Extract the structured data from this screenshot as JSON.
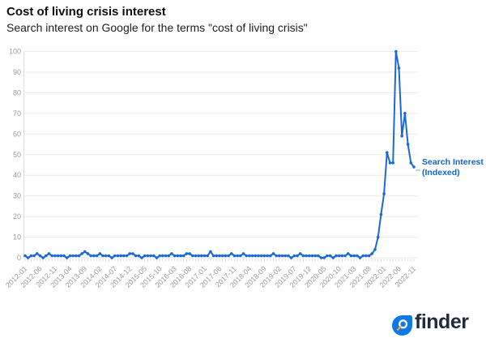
{
  "header": {
    "title": "Cost of living crisis interest",
    "subtitle": "Search interest on Google for the terms \"cost of living crisis\""
  },
  "legend": {
    "line1": "Search Interest",
    "line2": "(Indexed)"
  },
  "footer": {
    "brand": "finder",
    "logo_icon": "magnifier-in-blue-bubble"
  },
  "colors": {
    "line": "#1b69d7",
    "point": "#1b69d7",
    "legend_text": "#1565c8",
    "grid": "#eaeaea",
    "axis": "#dcdcdc",
    "month_tick": "#cfcfcf",
    "tick_label": "#9b9b9b",
    "brand_bubble_blue": "#0d79e8",
    "brand_navy": "#202c3b",
    "logo_handle_orange": "#ffa024",
    "background": "#ffffff"
  },
  "chart_data": {
    "type": "line",
    "title": "Cost of living crisis interest",
    "subtitle": "Search interest on Google for the terms \"cost of living crisis\"",
    "series": [
      {
        "name": "Search Interest (Indexed)",
        "color": "#1b69d7"
      }
    ],
    "x": [
      "2012-01",
      "2012-02",
      "2012-03",
      "2012-04",
      "2012-05",
      "2012-06",
      "2012-07",
      "2012-08",
      "2012-09",
      "2012-10",
      "2012-11",
      "2012-12",
      "2013-01",
      "2013-02",
      "2013-03",
      "2013-04",
      "2013-05",
      "2013-06",
      "2013-07",
      "2013-08",
      "2013-09",
      "2013-10",
      "2013-11",
      "2013-12",
      "2014-01",
      "2014-02",
      "2014-03",
      "2014-04",
      "2014-05",
      "2014-06",
      "2014-07",
      "2014-08",
      "2014-09",
      "2014-10",
      "2014-11",
      "2014-12",
      "2015-01",
      "2015-02",
      "2015-03",
      "2015-04",
      "2015-05",
      "2015-06",
      "2015-07",
      "2015-08",
      "2015-09",
      "2015-10",
      "2015-11",
      "2015-12",
      "2016-01",
      "2016-02",
      "2016-03",
      "2016-04",
      "2016-05",
      "2016-06",
      "2016-07",
      "2016-08",
      "2016-09",
      "2016-10",
      "2016-11",
      "2016-12",
      "2017-01",
      "2017-02",
      "2017-03",
      "2017-04",
      "2017-05",
      "2017-06",
      "2017-07",
      "2017-08",
      "2017-09",
      "2017-10",
      "2017-11",
      "2017-12",
      "2018-01",
      "2018-02",
      "2018-03",
      "2018-04",
      "2018-05",
      "2018-06",
      "2018-07",
      "2018-08",
      "2018-09",
      "2018-10",
      "2018-11",
      "2018-12",
      "2019-01",
      "2019-02",
      "2019-03",
      "2019-04",
      "2019-05",
      "2019-06",
      "2019-07",
      "2019-08",
      "2019-09",
      "2019-10",
      "2019-11",
      "2019-12",
      "2020-01",
      "2020-02",
      "2020-03",
      "2020-04",
      "2020-05",
      "2020-06",
      "2020-07",
      "2020-08",
      "2020-09",
      "2020-10",
      "2020-11",
      "2020-12",
      "2021-01",
      "2021-02",
      "2021-03",
      "2021-04",
      "2021-05",
      "2021-06",
      "2021-07",
      "2021-08",
      "2021-09",
      "2021-10",
      "2021-11",
      "2021-12",
      "2022-01",
      "2022-02",
      "2022-03",
      "2022-04",
      "2022-05",
      "2022-06",
      "2022-07",
      "2022-08",
      "2022-09",
      "2022-10",
      "2022-11"
    ],
    "values": [
      1,
      0,
      1,
      1,
      2,
      1,
      0,
      1,
      2,
      1,
      1,
      1,
      1,
      1,
      0,
      1,
      1,
      1,
      1,
      2,
      3,
      2,
      1,
      1,
      1,
      2,
      1,
      1,
      1,
      0,
      1,
      1,
      1,
      1,
      1,
      2,
      2,
      1,
      1,
      0,
      1,
      1,
      1,
      1,
      0,
      1,
      1,
      1,
      1,
      2,
      1,
      1,
      1,
      1,
      2,
      2,
      1,
      1,
      1,
      1,
      1,
      1,
      3,
      1,
      1,
      1,
      1,
      1,
      1,
      2,
      1,
      1,
      1,
      2,
      1,
      1,
      1,
      1,
      1,
      1,
      1,
      1,
      1,
      2,
      1,
      1,
      1,
      1,
      1,
      0,
      1,
      1,
      2,
      1,
      1,
      1,
      1,
      1,
      1,
      0,
      0,
      1,
      1,
      0,
      1,
      1,
      1,
      1,
      2,
      1,
      1,
      1,
      0,
      1,
      1,
      1,
      2,
      4,
      10,
      21,
      31,
      51,
      46,
      46,
      100,
      92,
      59,
      70,
      55,
      46,
      44
    ],
    "ylim": [
      0,
      100
    ],
    "yticks": [
      0,
      10,
      20,
      30,
      40,
      50,
      60,
      70,
      80,
      90,
      100
    ],
    "xtick_every": 5,
    "xtick_labels": [
      "2012-01",
      "2012-06",
      "2012-11",
      "2013-04",
      "2013-09",
      "2014-02",
      "2014-07",
      "2014-12",
      "2015-05",
      "2015-10",
      "2016-03",
      "2016-08",
      "2017-01",
      "2017-06",
      "2017-11",
      "2018-04",
      "2018-09",
      "2019-02",
      "2019-07",
      "2019-12",
      "2020-05",
      "2020-10",
      "2021-03",
      "2021-08",
      "2022-01",
      "2022-06",
      "2022-11"
    ],
    "grid": "horizontal",
    "legend_position": "right-of-last-point",
    "xlabel": "",
    "ylabel": ""
  }
}
